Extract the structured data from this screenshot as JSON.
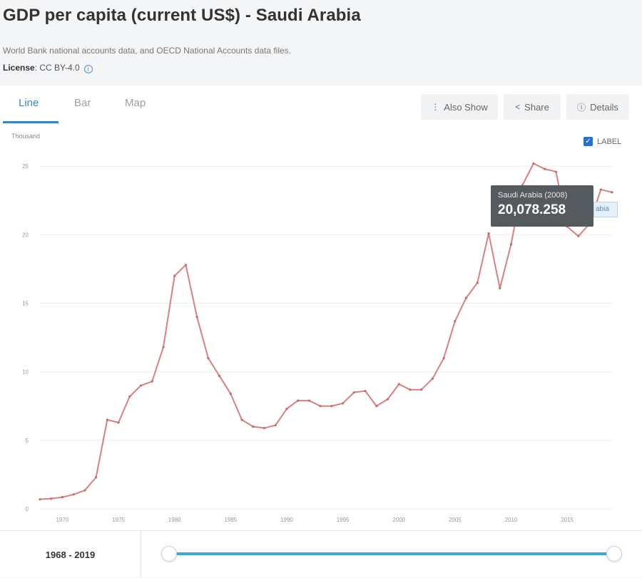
{
  "header": {
    "title": "GDP per capita (current US$) - Saudi Arabia",
    "source": "World Bank national accounts data, and OECD National Accounts data files.",
    "license_label": "License",
    "license_value": ": CC BY-4.0"
  },
  "tabs": [
    {
      "label": "Line",
      "active": true
    },
    {
      "label": "Bar",
      "active": false
    },
    {
      "label": "Map",
      "active": false
    }
  ],
  "toolbar": {
    "also_show": "Also Show",
    "share": "Share",
    "details": "Details"
  },
  "label_toggle": {
    "text": "LABEL",
    "checked": true
  },
  "tooltip": {
    "name": "Saudi Arabia (2008)",
    "value": "20,078.258"
  },
  "series_tag": "abia",
  "range": {
    "label": "1968 - 2019",
    "start": 1968,
    "end": 2019
  },
  "colors": {
    "line": "#d98080",
    "accent": "#3a87c8",
    "slider": "#3aa9d8"
  },
  "chart_data": {
    "type": "line",
    "unit_label": "Thousand",
    "ylim": [
      0,
      26
    ],
    "yticks": [
      0,
      5,
      10,
      15,
      20,
      25
    ],
    "ytick_labels": [
      "0",
      "5",
      "10",
      "15",
      "20",
      "25"
    ],
    "xlim": [
      1968,
      2019
    ],
    "xticks": [
      1970,
      1975,
      1980,
      1985,
      1990,
      1995,
      2000,
      2005,
      2010,
      2015
    ],
    "series": [
      {
        "x": [
          1968,
          1969,
          1970,
          1971,
          1972,
          1973,
          1974,
          1975,
          1976,
          1977,
          1978,
          1979,
          1980,
          1981,
          1982,
          1983,
          1984,
          1985,
          1986,
          1987,
          1988,
          1989,
          1990,
          1991,
          1992,
          1993,
          1994,
          1995,
          1996,
          1997,
          1998,
          1999,
          2000,
          2001,
          2002,
          2003,
          2004,
          2005,
          2006,
          2007,
          2008,
          2009,
          2010,
          2011,
          2012,
          2013,
          2014,
          2015,
          2016,
          2017,
          2018,
          2019
        ],
        "y": [
          0.7,
          0.75,
          0.85,
          1.05,
          1.35,
          2.3,
          6.5,
          6.3,
          8.2,
          9.0,
          9.3,
          11.8,
          17.0,
          17.8,
          14.0,
          11.0,
          9.7,
          8.4,
          6.5,
          6.0,
          5.9,
          6.1,
          7.3,
          7.9,
          7.9,
          7.5,
          7.5,
          7.7,
          8.5,
          8.6,
          7.5,
          8.0,
          9.1,
          8.7,
          8.7,
          9.5,
          11.0,
          13.7,
          15.4,
          16.5,
          20.1,
          16.1,
          19.3,
          23.6,
          25.2,
          24.8,
          24.6,
          20.6,
          19.9,
          20.8,
          23.3,
          23.1
        ]
      }
    ]
  }
}
